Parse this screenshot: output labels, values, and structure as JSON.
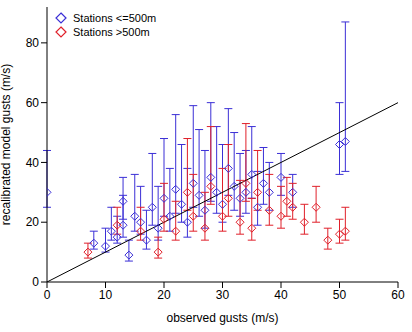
{
  "chart_data": {
    "type": "scatter",
    "x_label": "observed gusts (m/s)",
    "y_label": "recalibrated model gusts (m/s)",
    "xlim": [
      0,
      60
    ],
    "ylim": [
      0,
      92
    ],
    "xticks": [
      0,
      10,
      20,
      30,
      40,
      50,
      60
    ],
    "yticks": [
      0,
      20,
      40,
      60,
      80
    ],
    "grid": false,
    "legend": "upper left",
    "reference_line": {
      "x": [
        0,
        60
      ],
      "y": [
        0,
        60
      ],
      "color": "#000000"
    },
    "series": [
      {
        "name": "Stations <=500m",
        "color": "#3b2fd6",
        "marker": "diamond",
        "x": [
          8,
          10,
          11,
          12,
          13,
          14,
          15,
          16,
          17,
          18,
          19,
          20,
          21,
          22,
          23,
          24,
          25,
          26,
          27,
          28,
          29,
          30,
          31,
          32,
          33,
          34,
          35,
          36,
          37,
          38,
          40,
          42,
          50,
          51,
          13,
          0
        ],
        "y": [
          13,
          12,
          17,
          15,
          19,
          9,
          22,
          20,
          14,
          25,
          18,
          28,
          22,
          31,
          26,
          20,
          33,
          29,
          24,
          35,
          30,
          26,
          38,
          32,
          28,
          30,
          36,
          25,
          33,
          30,
          35,
          30,
          46,
          47,
          27,
          30
        ],
        "error": [
          [
            2,
            4
          ],
          [
            2,
            6
          ],
          [
            3,
            8
          ],
          [
            2,
            7
          ],
          [
            4,
            10
          ],
          [
            2,
            5
          ],
          [
            5,
            14
          ],
          [
            4,
            12
          ],
          [
            3,
            10
          ],
          [
            6,
            18
          ],
          [
            4,
            14
          ],
          [
            6,
            20
          ],
          [
            5,
            16
          ],
          [
            8,
            25
          ],
          [
            6,
            20
          ],
          [
            5,
            18
          ],
          [
            8,
            26
          ],
          [
            7,
            22
          ],
          [
            6,
            20
          ],
          [
            8,
            25
          ],
          [
            7,
            22
          ],
          [
            6,
            20
          ],
          [
            9,
            20
          ],
          [
            8,
            18
          ],
          [
            6,
            15
          ],
          [
            7,
            14
          ],
          [
            8,
            16
          ],
          [
            6,
            12
          ],
          [
            7,
            12
          ],
          [
            6,
            10
          ],
          [
            6,
            8
          ],
          [
            5,
            6
          ],
          [
            10,
            14
          ],
          [
            10,
            40
          ],
          [
            6,
            8
          ],
          [
            5,
            14
          ]
        ]
      },
      {
        "name": "Stations >500m",
        "color": "#e0202a",
        "marker": "diamond",
        "x": [
          7,
          12,
          16,
          19,
          20,
          22,
          24,
          25,
          27,
          28,
          30,
          31,
          33,
          34,
          35,
          36,
          38,
          40,
          41,
          42,
          44,
          46,
          48,
          50,
          51
        ],
        "y": [
          10,
          19,
          17,
          10,
          21,
          17,
          30,
          22,
          18,
          32,
          22,
          28,
          20,
          33,
          18,
          30,
          24,
          22,
          27,
          25,
          20,
          25,
          14,
          16,
          17
        ],
        "error": [
          [
            2,
            3
          ],
          [
            3,
            6
          ],
          [
            3,
            8
          ],
          [
            2,
            5
          ],
          [
            4,
            12
          ],
          [
            3,
            10
          ],
          [
            6,
            18
          ],
          [
            5,
            14
          ],
          [
            4,
            12
          ],
          [
            6,
            20
          ],
          [
            5,
            16
          ],
          [
            6,
            18
          ],
          [
            4,
            14
          ],
          [
            6,
            20
          ],
          [
            4,
            10
          ],
          [
            6,
            14
          ],
          [
            5,
            12
          ],
          [
            4,
            10
          ],
          [
            5,
            8
          ],
          [
            4,
            8
          ],
          [
            4,
            6
          ],
          [
            5,
            7
          ],
          [
            3,
            4
          ],
          [
            3,
            5
          ],
          [
            3,
            8
          ]
        ]
      }
    ]
  }
}
